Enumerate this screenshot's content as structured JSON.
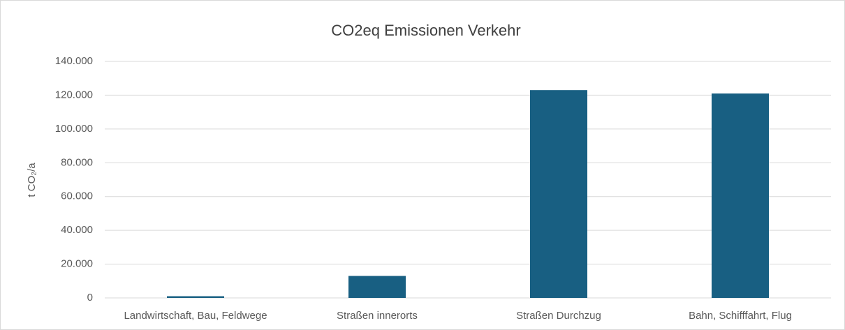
{
  "chart_data": {
    "type": "bar",
    "title": "CO2eq Emissionen Verkehr",
    "ylabel": "t CO₂/a",
    "categories": [
      "Landwirtschaft, Bau, Feldwege",
      "Straßen innerorts",
      "Straßen Durchzug",
      "Bahn, Schifffahrt, Flug"
    ],
    "values": [
      1000,
      13000,
      123000,
      121000
    ],
    "color": "#185f82",
    "ylim": [
      0,
      140000
    ],
    "yticks": [
      0,
      {
        "value": 20000,
        "label": "20.000"
      },
      {
        "value": 40000,
        "label": "40.000"
      },
      {
        "value": 60000,
        "label": "60.000"
      },
      {
        "value": 80000,
        "label": "80.000"
      },
      {
        "value": 100000,
        "label": "100.000"
      },
      {
        "value": 120000,
        "label": "120.000"
      },
      {
        "value": 140000,
        "label": "140.000"
      }
    ],
    "grid": true
  }
}
